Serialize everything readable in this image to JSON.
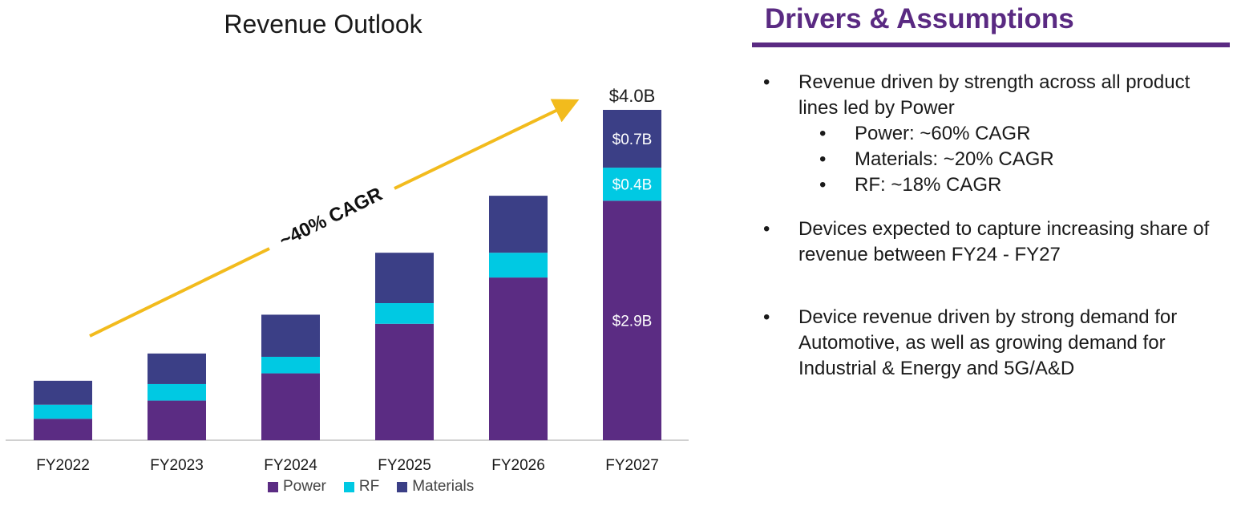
{
  "chart_data": {
    "type": "bar",
    "stacked": true,
    "title": "Revenue Outlook",
    "categories": [
      "FY2022",
      "FY2023",
      "FY2024",
      "FY2025",
      "FY2026",
      "FY2027"
    ],
    "series": [
      {
        "name": "Power",
        "color": "#5b2c83",
        "values": [
          0.26,
          0.48,
          0.81,
          1.41,
          1.97,
          2.9
        ]
      },
      {
        "name": "RF",
        "color": "#00c9e3",
        "values": [
          0.17,
          0.2,
          0.2,
          0.25,
          0.3,
          0.4
        ]
      },
      {
        "name": "Materials",
        "color": "#3b3f86",
        "values": [
          0.29,
          0.37,
          0.51,
          0.61,
          0.69,
          0.7
        ]
      }
    ],
    "data_labels": {
      "FY2027": {
        "Power": "$2.9B",
        "RF": "$0.4B",
        "Materials": "$0.7B"
      }
    },
    "total_labels": {
      "FY2027": "$4.0B"
    },
    "annotation": "~40% CAGR",
    "ylim": [
      0,
      4.0
    ],
    "grid": false,
    "legend_position": "bottom"
  },
  "drivers": {
    "title": "Drivers & Assumptions",
    "bullets": [
      {
        "text": "Revenue driven by strength across all product lines led by Power",
        "subs": [
          "Power: ~60% CAGR",
          "Materials: ~20% CAGR",
          "RF: ~18% CAGR"
        ]
      },
      {
        "text": "Devices expected to capture increasing share of revenue between FY24 - FY27",
        "subs": []
      },
      {
        "text": "Device revenue driven by strong demand for Automotive, as well as growing demand for Industrial & Energy and 5G/A&D",
        "subs": []
      }
    ],
    "bullet_glyph": "•"
  },
  "colors": {
    "accent": "#5a2a82",
    "arrow": "#f2bb1d"
  }
}
